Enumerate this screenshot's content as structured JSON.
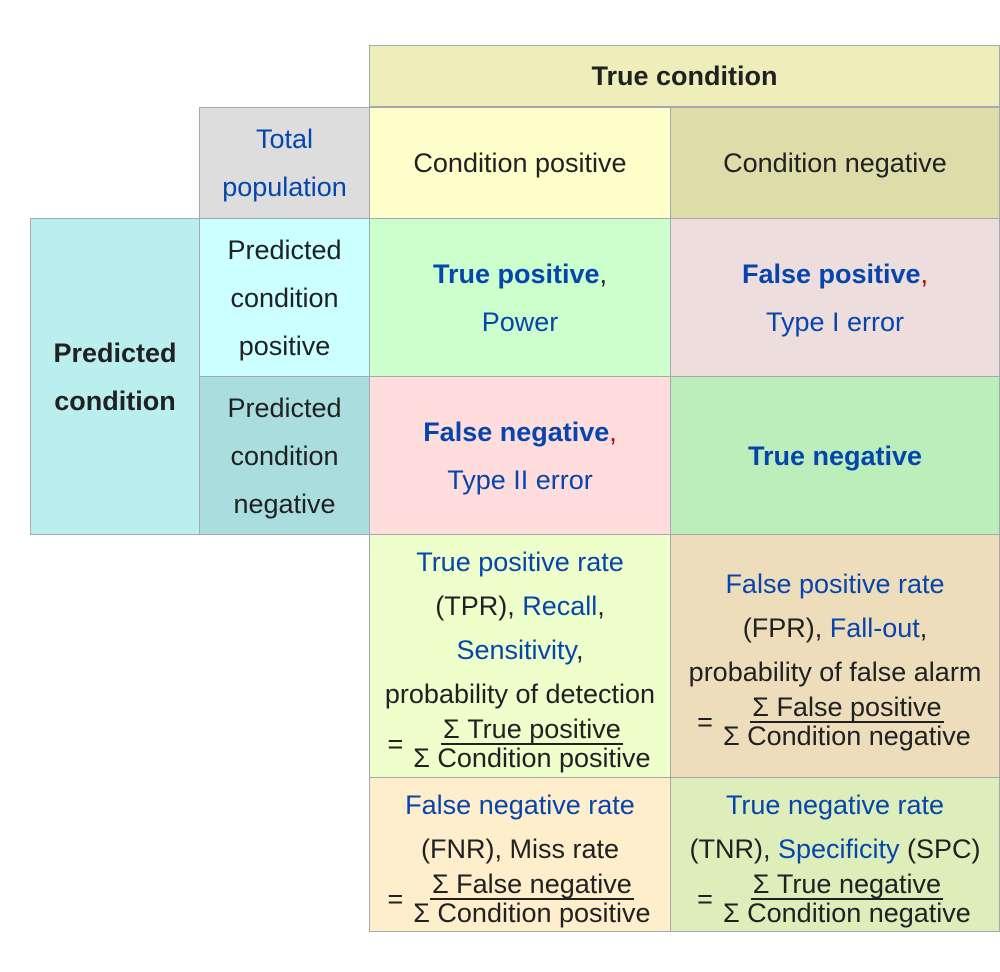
{
  "header": {
    "true_condition": "True condition",
    "total_population_line1": "Total",
    "total_population_line2": "population",
    "condition_positive": "Condition positive",
    "condition_negative": "Condition negative",
    "predicted_condition_line1": "Predicted",
    "predicted_condition_line2": "condition"
  },
  "rows": {
    "pred_pos": [
      "Predicted",
      "condition",
      "positive"
    ],
    "pred_neg": [
      "Predicted",
      "condition",
      "negative"
    ]
  },
  "cells": {
    "tp": {
      "term": "True positive",
      "sep": ",",
      "alt": "Power"
    },
    "fp": {
      "term": "False positive",
      "sep": ",",
      "alt": "Type I error"
    },
    "fn": {
      "term": "False negative",
      "sep": ",",
      "alt": "Type II error"
    },
    "tn": {
      "term": "True negative"
    }
  },
  "rates": {
    "tpr": {
      "title": "True positive rate",
      "abbr": "(TPR), ",
      "recall": "Recall",
      "comma1": ",",
      "sensitivity": "Sensitivity",
      "comma2": ",",
      "desc": "probability of detection",
      "eq": "=",
      "num": "Σ True positive",
      "den": "Σ Condition positive"
    },
    "fpr": {
      "title": "False positive rate",
      "abbr": "(FPR), ",
      "fallout": "Fall-out",
      "comma": ",",
      "desc": "probability of false alarm",
      "eq": "=",
      "num": "Σ False positive",
      "den": "Σ Condition negative"
    },
    "fnr": {
      "title": "False negative rate",
      "desc": "(FNR), Miss rate",
      "eq": "=",
      "num": "Σ False negative",
      "den": "Σ Condition positive"
    },
    "tnr": {
      "title": "True negative rate",
      "abbr": "(TNR), ",
      "specificity": "Specificity",
      "suffix": " (SPC)",
      "eq": "=",
      "num": "Σ True negative",
      "den": "Σ Condition negative"
    }
  },
  "colors": {
    "true_condition": "#eeeebb",
    "total_population": "#dddddd",
    "condition_positive": "#ffffcc",
    "condition_negative": "#ddddaa",
    "predicted_condition": "#bbeeee",
    "predicted_positive": "#ccffff",
    "predicted_negative": "#aadddd",
    "true_positive": "#ccffcc",
    "false_positive": "#eedddd",
    "false_negative": "#ffdddd",
    "true_negative": "#bbeebb",
    "tpr": "#eeffcc",
    "fpr": "#eeddbb",
    "fnr": "#ffeecc",
    "tnr": "#ddeebb"
  }
}
